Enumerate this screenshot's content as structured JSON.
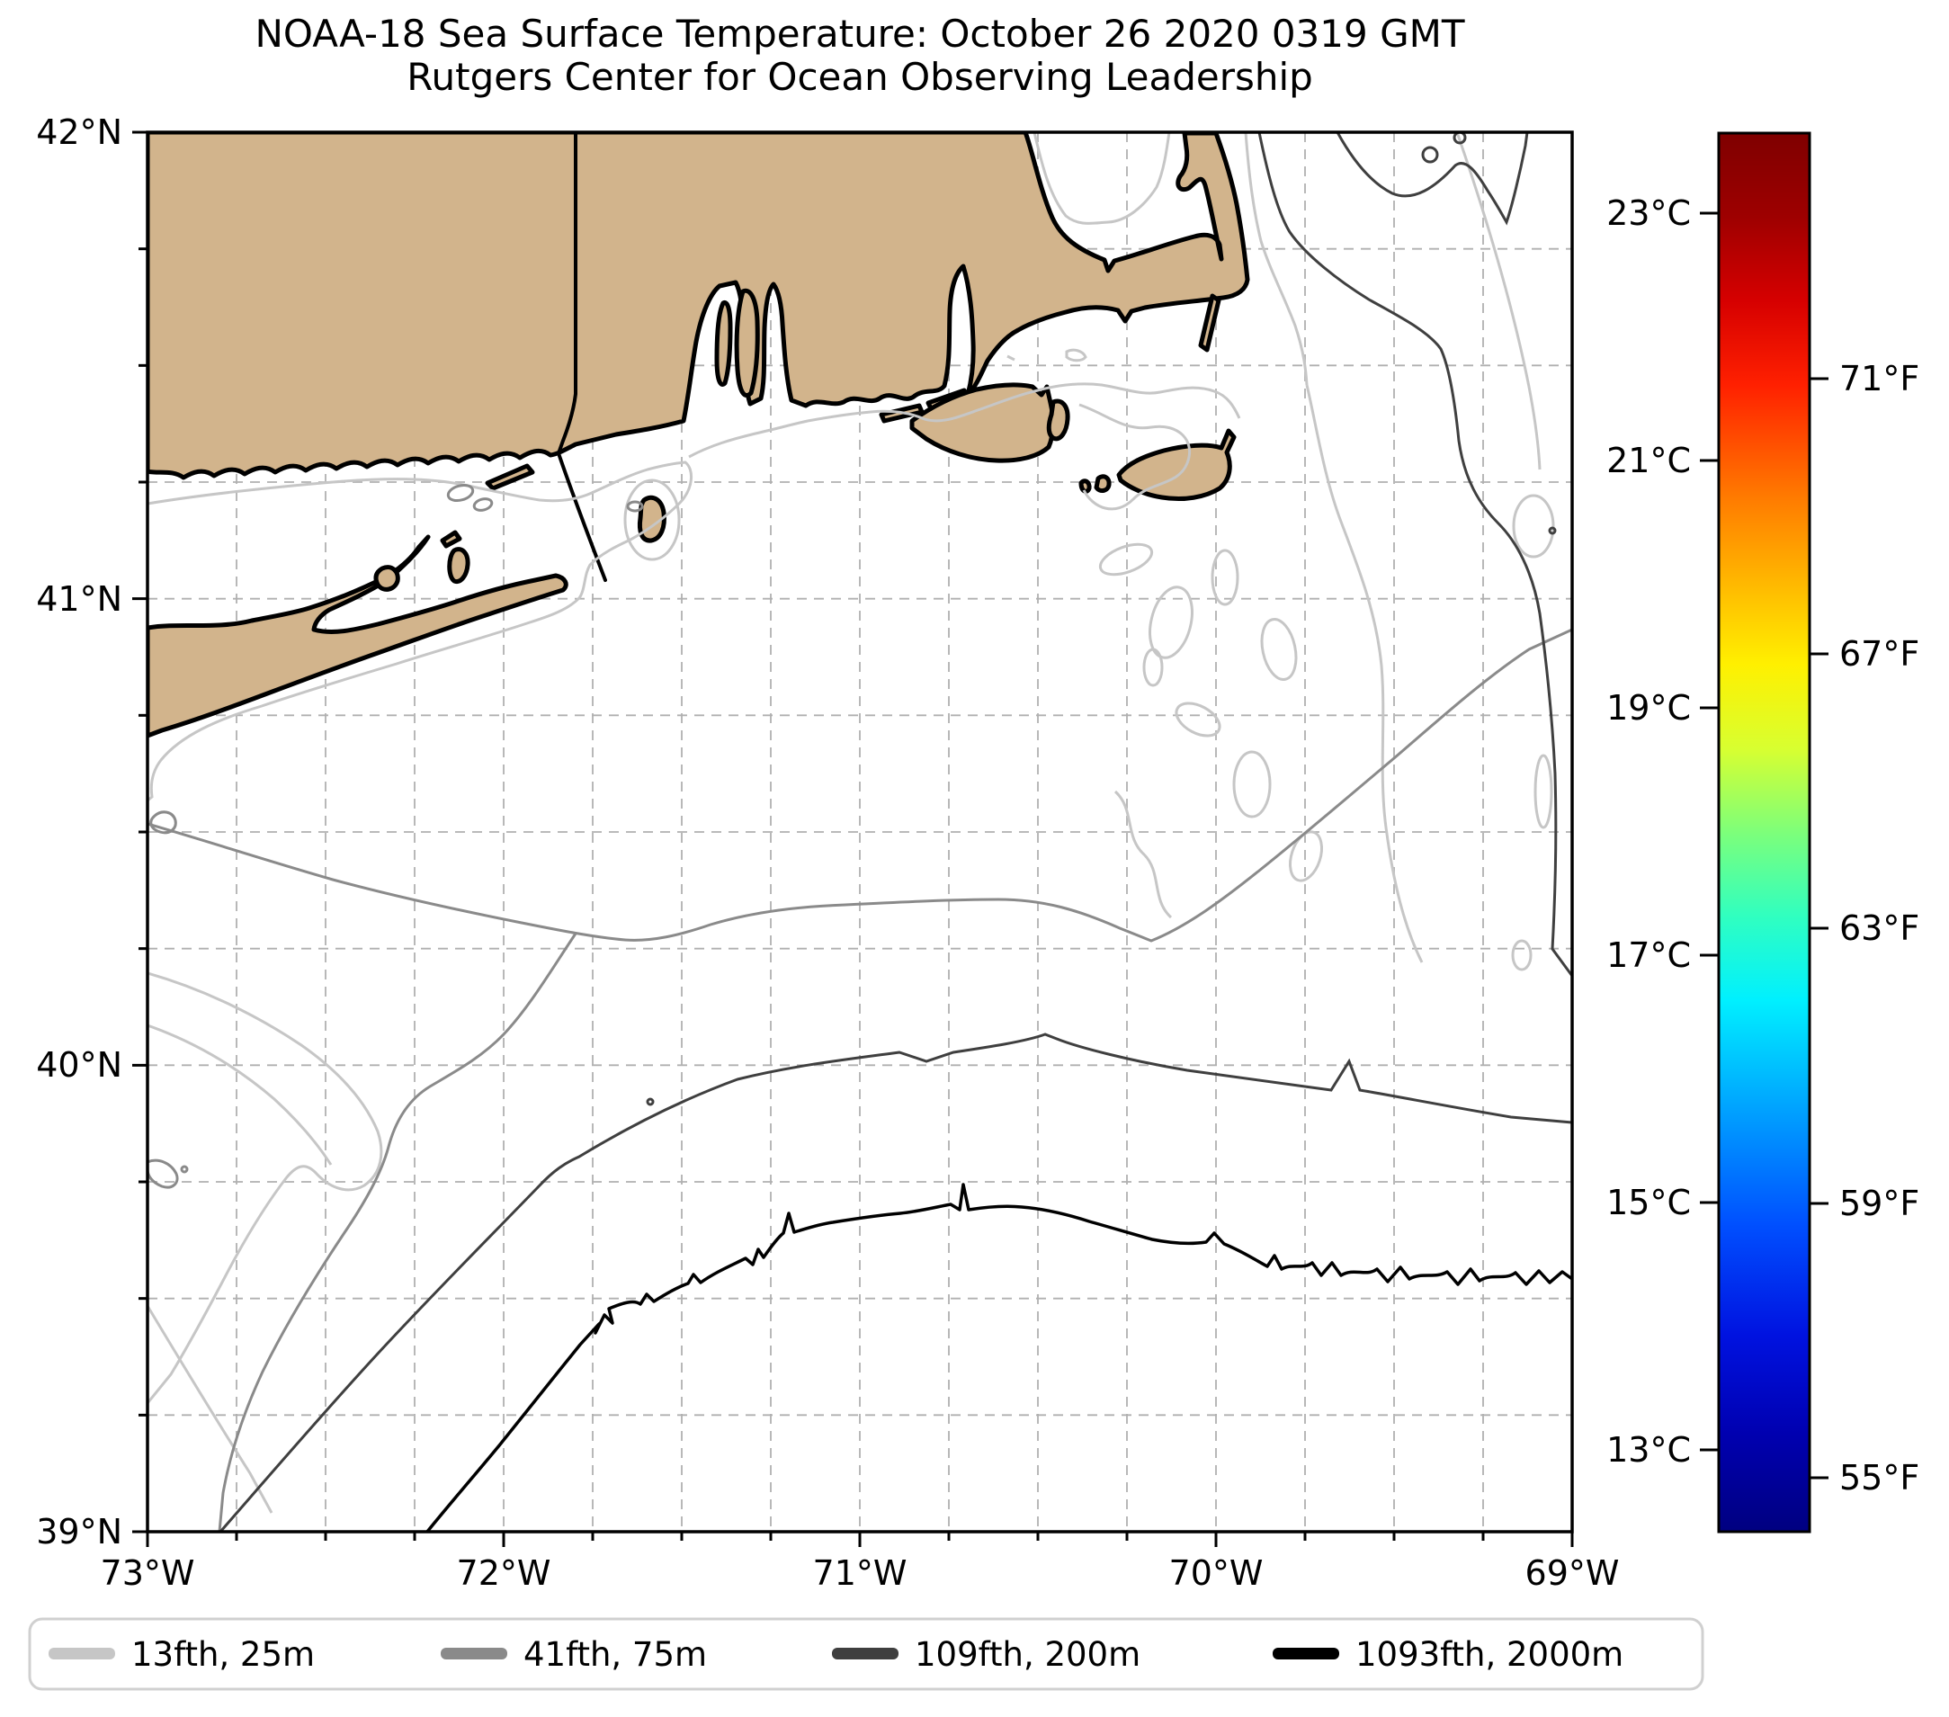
{
  "title": {
    "line1": "NOAA-18 Sea Surface Temperature: October 26 2020 0319 GMT",
    "line2": "Rutgers Center for Ocean Observing Leadership"
  },
  "map": {
    "y_axis": {
      "ticks": [
        "42°N",
        "41°N",
        "40°N",
        "39°N"
      ]
    },
    "x_axis": {
      "ticks": [
        "73°W",
        "72°W",
        "71°W",
        "70°W",
        "69°W"
      ]
    }
  },
  "colorbar": {
    "celsius": [
      "23°C",
      "21°C",
      "19°C",
      "17°C",
      "15°C",
      "13°C"
    ],
    "fahrenheit": [
      "71°F",
      "67°F",
      "63°F",
      "59°F",
      "55°F"
    ]
  },
  "legend": {
    "items": [
      {
        "label": "13fth, 25m",
        "color": "#c6c6c6"
      },
      {
        "label": "41fth, 75m",
        "color": "#8a8a8a"
      },
      {
        "label": "109fth, 200m",
        "color": "#3f3f3f"
      },
      {
        "label": "1093fth, 2000m",
        "color": "#000000"
      }
    ]
  },
  "chart_data": {
    "type": "heatmap",
    "title": "NOAA-18 Sea Surface Temperature: October 26 2020 0319 GMT",
    "subtitle": "Rutgers Center for Ocean Observing Leadership",
    "projection_extent": {
      "lon_min_deg_w": 73,
      "lon_max_deg_w": 69,
      "lat_min_deg_n": 39,
      "lat_max_deg_n": 42
    },
    "x_tick_labels_deg_w": [
      73,
      72,
      71,
      70,
      69
    ],
    "y_tick_labels_deg_n": [
      42,
      41,
      40,
      39
    ],
    "minor_tick_interval_deg": 0.25,
    "grid": "dashed, every 0.25 degree",
    "sst_field": "no colored SST pixels visible (ocean shown white); only land mask and bathymetry contours",
    "colormap": "jet (dark red top to dark blue bottom)",
    "colorbar_ticks_c": [
      23,
      21,
      19,
      17,
      15,
      13
    ],
    "colorbar_ticks_f": [
      71,
      67,
      63,
      59,
      55
    ],
    "colorbar_range_c_approx": [
      12.3,
      23.7
    ],
    "land_color": "#D2B48C",
    "bathymetry_contours": [
      {
        "label": "13fth, 25m",
        "depth_m": 25,
        "color": "light gray"
      },
      {
        "label": "41fth, 75m",
        "depth_m": 75,
        "color": "medium gray"
      },
      {
        "label": "109fth, 200m",
        "depth_m": 200,
        "color": "dark gray"
      },
      {
        "label": "1093fth, 2000m",
        "depth_m": 2000,
        "color": "black"
      }
    ],
    "legend_position": "below plot, horizontal"
  }
}
